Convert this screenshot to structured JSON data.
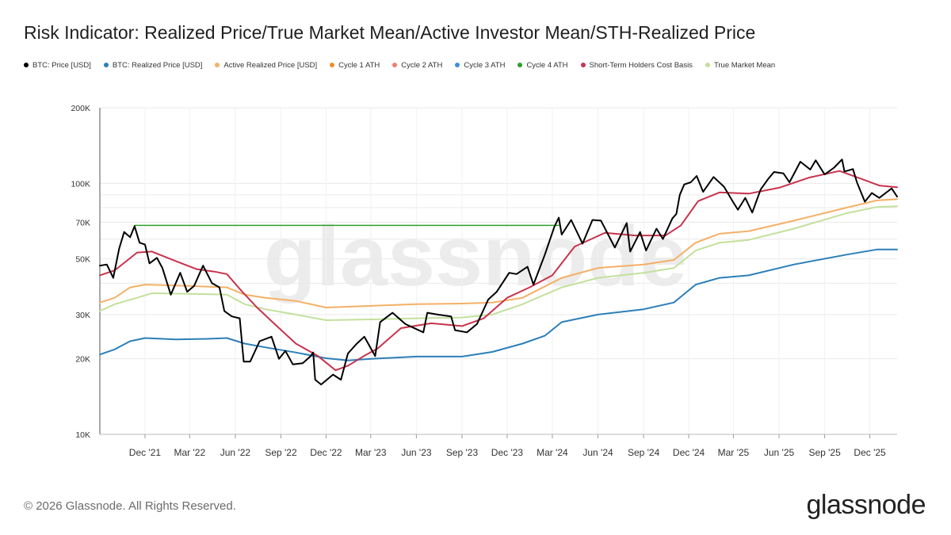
{
  "chart_data": {
    "type": "line",
    "title": "Risk Indicator: Realized Price/True Market Mean/Active Investor Mean/STH-Realized Price",
    "y_scale": "log",
    "ylim": [
      10000,
      200000
    ],
    "y_ticks": [
      {
        "value": 10000,
        "label": "10K"
      },
      {
        "value": 20000,
        "label": "20K"
      },
      {
        "value": 30000,
        "label": "30K"
      },
      {
        "value": 50000,
        "label": "50K"
      },
      {
        "value": 70000,
        "label": "70K"
      },
      {
        "value": 100000,
        "label": "100K"
      },
      {
        "value": 200000,
        "label": "200K"
      }
    ],
    "xlim": [
      "2021-09-01",
      "2026-01-25"
    ],
    "x_ticks": [
      {
        "date": "2021-12-01",
        "label": "Dec '21"
      },
      {
        "date": "2022-03-01",
        "label": "Mar '22"
      },
      {
        "date": "2022-06-01",
        "label": "Jun '22"
      },
      {
        "date": "2022-09-01",
        "label": "Sep '22"
      },
      {
        "date": "2022-12-01",
        "label": "Dec '22"
      },
      {
        "date": "2023-03-01",
        "label": "Mar '23"
      },
      {
        "date": "2023-06-01",
        "label": "Jun '23"
      },
      {
        "date": "2023-09-01",
        "label": "Sep '23"
      },
      {
        "date": "2023-12-01",
        "label": "Dec '23"
      },
      {
        "date": "2024-03-01",
        "label": "Mar '24"
      },
      {
        "date": "2024-06-01",
        "label": "Jun '24"
      },
      {
        "date": "2024-09-01",
        "label": "Sep '24"
      },
      {
        "date": "2024-12-01",
        "label": "Dec '24"
      },
      {
        "date": "2025-03-01",
        "label": "Mar '25"
      },
      {
        "date": "2025-06-01",
        "label": "Jun '25"
      },
      {
        "date": "2025-09-01",
        "label": "Sep '25"
      },
      {
        "date": "2025-12-01",
        "label": "Dec '25"
      }
    ],
    "legend_position": "top",
    "grid": true,
    "series": [
      {
        "name": "BTC: Price [USD]",
        "color": "#000000",
        "width": 2,
        "points": [
          [
            "2021-09-01",
            47000
          ],
          [
            "2021-09-15",
            47500
          ],
          [
            "2021-09-28",
            42000
          ],
          [
            "2021-10-10",
            55000
          ],
          [
            "2021-10-20",
            64000
          ],
          [
            "2021-11-01",
            61000
          ],
          [
            "2021-11-10",
            67500
          ],
          [
            "2021-11-20",
            58000
          ],
          [
            "2021-12-01",
            57000
          ],
          [
            "2021-12-10",
            48000
          ],
          [
            "2021-12-25",
            50500
          ],
          [
            "2022-01-05",
            46000
          ],
          [
            "2022-01-22",
            36000
          ],
          [
            "2022-02-10",
            44000
          ],
          [
            "2022-02-24",
            37000
          ],
          [
            "2022-03-10",
            39000
          ],
          [
            "2022-03-28",
            47000
          ],
          [
            "2022-04-15",
            40000
          ],
          [
            "2022-04-30",
            38500
          ],
          [
            "2022-05-10",
            31000
          ],
          [
            "2022-05-25",
            29500
          ],
          [
            "2022-06-10",
            29000
          ],
          [
            "2022-06-18",
            19500
          ],
          [
            "2022-07-01",
            19500
          ],
          [
            "2022-07-20",
            23500
          ],
          [
            "2022-08-13",
            24500
          ],
          [
            "2022-08-28",
            20000
          ],
          [
            "2022-09-10",
            21500
          ],
          [
            "2022-09-25",
            19000
          ],
          [
            "2022-10-15",
            19200
          ],
          [
            "2022-10-31",
            20500
          ],
          [
            "2022-11-05",
            21200
          ],
          [
            "2022-11-09",
            16500
          ],
          [
            "2022-11-21",
            15800
          ],
          [
            "2022-12-15",
            17300
          ],
          [
            "2022-12-31",
            16500
          ],
          [
            "2023-01-14",
            21000
          ],
          [
            "2023-02-01",
            23000
          ],
          [
            "2023-02-16",
            24500
          ],
          [
            "2023-03-10",
            20500
          ],
          [
            "2023-03-20",
            28000
          ],
          [
            "2023-04-14",
            30500
          ],
          [
            "2023-05-10",
            27500
          ],
          [
            "2023-06-15",
            25500
          ],
          [
            "2023-06-23",
            30500
          ],
          [
            "2023-07-14",
            30000
          ],
          [
            "2023-08-10",
            29500
          ],
          [
            "2023-08-18",
            26000
          ],
          [
            "2023-09-11",
            25500
          ],
          [
            "2023-10-01",
            27500
          ],
          [
            "2023-10-24",
            34500
          ],
          [
            "2023-11-10",
            37000
          ],
          [
            "2023-12-05",
            44000
          ],
          [
            "2023-12-20",
            43500
          ],
          [
            "2024-01-11",
            46500
          ],
          [
            "2024-01-23",
            39500
          ],
          [
            "2024-02-15",
            52000
          ],
          [
            "2024-03-05",
            67000
          ],
          [
            "2024-03-14",
            73000
          ],
          [
            "2024-03-20",
            62500
          ],
          [
            "2024-04-08",
            71500
          ],
          [
            "2024-05-01",
            57500
          ],
          [
            "2024-05-21",
            71500
          ],
          [
            "2024-06-07",
            71000
          ],
          [
            "2024-07-05",
            55500
          ],
          [
            "2024-07-29",
            69500
          ],
          [
            "2024-08-05",
            53500
          ],
          [
            "2024-08-25",
            64000
          ],
          [
            "2024-09-06",
            54000
          ],
          [
            "2024-09-27",
            66000
          ],
          [
            "2024-10-10",
            60000
          ],
          [
            "2024-10-29",
            72500
          ],
          [
            "2024-11-06",
            75500
          ],
          [
            "2024-11-13",
            90000
          ],
          [
            "2024-11-22",
            99000
          ],
          [
            "2024-12-05",
            101000
          ],
          [
            "2024-12-17",
            107000
          ],
          [
            "2024-12-30",
            92500
          ],
          [
            "2025-01-20",
            106000
          ],
          [
            "2025-02-10",
            97000
          ],
          [
            "2025-02-28",
            84500
          ],
          [
            "2025-03-10",
            78500
          ],
          [
            "2025-03-25",
            87500
          ],
          [
            "2025-04-08",
            76500
          ],
          [
            "2025-04-25",
            94500
          ],
          [
            "2025-05-10",
            104000
          ],
          [
            "2025-05-22",
            111000
          ],
          [
            "2025-06-10",
            109500
          ],
          [
            "2025-06-22",
            101000
          ],
          [
            "2025-07-14",
            122000
          ],
          [
            "2025-08-03",
            113500
          ],
          [
            "2025-08-14",
            123500
          ],
          [
            "2025-09-01",
            108500
          ],
          [
            "2025-09-20",
            115500
          ],
          [
            "2025-10-06",
            124500
          ],
          [
            "2025-10-11",
            111500
          ],
          [
            "2025-10-28",
            114000
          ],
          [
            "2025-11-05",
            101000
          ],
          [
            "2025-11-21",
            84500
          ],
          [
            "2025-12-05",
            91500
          ],
          [
            "2025-12-20",
            87500
          ],
          [
            "2026-01-05",
            92500
          ],
          [
            "2026-01-14",
            95500
          ],
          [
            "2026-01-25",
            88500
          ]
        ]
      },
      {
        "name": "BTC: Realized Price [USD]",
        "color": "#2c7fb8",
        "width": 2,
        "points": [
          [
            "2021-09-01",
            20800
          ],
          [
            "2021-10-01",
            21800
          ],
          [
            "2021-11-01",
            23500
          ],
          [
            "2021-12-01",
            24200
          ],
          [
            "2022-02-01",
            23900
          ],
          [
            "2022-04-01",
            24000
          ],
          [
            "2022-05-15",
            24200
          ],
          [
            "2022-06-20",
            23000
          ],
          [
            "2022-08-01",
            22200
          ],
          [
            "2022-10-01",
            21200
          ],
          [
            "2022-12-01",
            20100
          ],
          [
            "2023-01-15",
            19700
          ],
          [
            "2023-03-01",
            20000
          ],
          [
            "2023-06-01",
            20400
          ],
          [
            "2023-09-01",
            20400
          ],
          [
            "2023-11-01",
            21300
          ],
          [
            "2024-01-01",
            23000
          ],
          [
            "2024-02-15",
            24700
          ],
          [
            "2024-03-20",
            28000
          ],
          [
            "2024-06-01",
            30000
          ],
          [
            "2024-09-01",
            31500
          ],
          [
            "2024-11-01",
            33500
          ],
          [
            "2024-12-15",
            39500
          ],
          [
            "2025-02-01",
            42000
          ],
          [
            "2025-04-01",
            43000
          ],
          [
            "2025-07-01",
            47500
          ],
          [
            "2025-10-15",
            52000
          ],
          [
            "2025-12-15",
            54500
          ],
          [
            "2026-01-25",
            54500
          ]
        ]
      },
      {
        "name": "Active Realized Price [USD]",
        "color": "#f4b066",
        "width": 2,
        "points": [
          [
            "2021-09-01",
            33500
          ],
          [
            "2021-10-01",
            35000
          ],
          [
            "2021-11-01",
            38500
          ],
          [
            "2021-12-01",
            39500
          ],
          [
            "2022-03-01",
            39000
          ],
          [
            "2022-05-15",
            38500
          ],
          [
            "2022-06-20",
            36000
          ],
          [
            "2022-08-01",
            35000
          ],
          [
            "2022-10-01",
            34000
          ],
          [
            "2022-12-01",
            32000
          ],
          [
            "2023-03-01",
            32500
          ],
          [
            "2023-06-01",
            33000
          ],
          [
            "2023-09-01",
            33200
          ],
          [
            "2023-11-01",
            33500
          ],
          [
            "2024-01-01",
            35000
          ],
          [
            "2024-03-20",
            42000
          ],
          [
            "2024-06-01",
            46000
          ],
          [
            "2024-09-01",
            47500
          ],
          [
            "2024-11-01",
            49500
          ],
          [
            "2024-12-15",
            58000
          ],
          [
            "2025-02-01",
            63000
          ],
          [
            "2025-04-01",
            64500
          ],
          [
            "2025-07-01",
            71000
          ],
          [
            "2025-10-15",
            80000
          ],
          [
            "2025-12-15",
            85500
          ],
          [
            "2026-01-25",
            86500
          ]
        ]
      },
      {
        "name": "Cycle 4 ATH",
        "color": "#2ca02c",
        "width": 1.5,
        "points": [
          [
            "2021-11-10",
            68000
          ],
          [
            "2024-03-14",
            68000
          ]
        ]
      },
      {
        "name": "Short-Term Holders Cost Basis",
        "color": "#c8334d",
        "width": 2,
        "points": [
          [
            "2021-09-01",
            43000
          ],
          [
            "2021-10-01",
            45000
          ],
          [
            "2021-11-15",
            53000
          ],
          [
            "2021-12-15",
            53500
          ],
          [
            "2022-02-01",
            49000
          ],
          [
            "2022-03-15",
            45500
          ],
          [
            "2022-04-20",
            44500
          ],
          [
            "2022-05-15",
            43500
          ],
          [
            "2022-06-15",
            37000
          ],
          [
            "2022-07-15",
            32000
          ],
          [
            "2022-08-15",
            28000
          ],
          [
            "2022-10-01",
            23000
          ],
          [
            "2022-11-15",
            20500
          ],
          [
            "2022-12-20",
            18000
          ],
          [
            "2023-01-15",
            18800
          ],
          [
            "2023-02-15",
            20500
          ],
          [
            "2023-03-15",
            22000
          ],
          [
            "2023-05-01",
            26500
          ],
          [
            "2023-07-01",
            27700
          ],
          [
            "2023-09-01",
            27000
          ],
          [
            "2023-10-15",
            29000
          ],
          [
            "2023-12-01",
            35000
          ],
          [
            "2024-01-15",
            38500
          ],
          [
            "2024-03-01",
            43000
          ],
          [
            "2024-04-15",
            56000
          ],
          [
            "2024-06-15",
            63500
          ],
          [
            "2024-08-15",
            62000
          ],
          [
            "2024-10-15",
            62000
          ],
          [
            "2024-11-15",
            68000
          ],
          [
            "2024-12-20",
            85000
          ],
          [
            "2025-02-01",
            92000
          ],
          [
            "2025-04-01",
            91000
          ],
          [
            "2025-06-01",
            96000
          ],
          [
            "2025-08-01",
            105500
          ],
          [
            "2025-10-01",
            112000
          ],
          [
            "2025-11-15",
            104000
          ],
          [
            "2025-12-20",
            98000
          ],
          [
            "2026-01-25",
            96500
          ]
        ]
      },
      {
        "name": "True Market Mean",
        "color": "#c3e09c",
        "width": 2,
        "points": [
          [
            "2021-09-01",
            31000
          ],
          [
            "2021-10-01",
            33000
          ],
          [
            "2021-11-15",
            35000
          ],
          [
            "2021-12-15",
            36500
          ],
          [
            "2022-03-01",
            36300
          ],
          [
            "2022-05-15",
            36000
          ],
          [
            "2022-06-20",
            33000
          ],
          [
            "2022-08-01",
            31500
          ],
          [
            "2022-10-01",
            30000
          ],
          [
            "2022-12-01",
            28500
          ],
          [
            "2023-03-01",
            28700
          ],
          [
            "2023-06-01",
            29000
          ],
          [
            "2023-09-01",
            29200
          ],
          [
            "2023-11-01",
            30000
          ],
          [
            "2024-01-01",
            33000
          ],
          [
            "2024-03-20",
            38500
          ],
          [
            "2024-06-01",
            42000
          ],
          [
            "2024-09-01",
            44000
          ],
          [
            "2024-11-01",
            46000
          ],
          [
            "2024-12-15",
            54000
          ],
          [
            "2025-02-01",
            58000
          ],
          [
            "2025-04-01",
            59500
          ],
          [
            "2025-07-01",
            66000
          ],
          [
            "2025-10-15",
            76000
          ],
          [
            "2025-12-15",
            80500
          ],
          [
            "2026-01-25",
            81000
          ]
        ]
      }
    ],
    "legend": [
      {
        "name": "BTC: Price [USD]",
        "color": "#000000"
      },
      {
        "name": "BTC: Realized Price [USD]",
        "color": "#2c7fb8"
      },
      {
        "name": "Active Realized Price [USD]",
        "color": "#f4b066"
      },
      {
        "name": "Cycle 1 ATH",
        "color": "#f28c28"
      },
      {
        "name": "Cycle 2 ATH",
        "color": "#ee7f6c"
      },
      {
        "name": "Cycle 3 ATH",
        "color": "#3b8fd9"
      },
      {
        "name": "Cycle 4 ATH",
        "color": "#2ca02c"
      },
      {
        "name": "Short-Term Holders Cost Basis",
        "color": "#c8334d"
      },
      {
        "name": "True Market Mean",
        "color": "#c3e09c"
      }
    ]
  },
  "watermark_text": "glassnode",
  "footer": {
    "copyright": "© 2026 Glassnode. All Rights Reserved.",
    "brand": "glassnode"
  }
}
